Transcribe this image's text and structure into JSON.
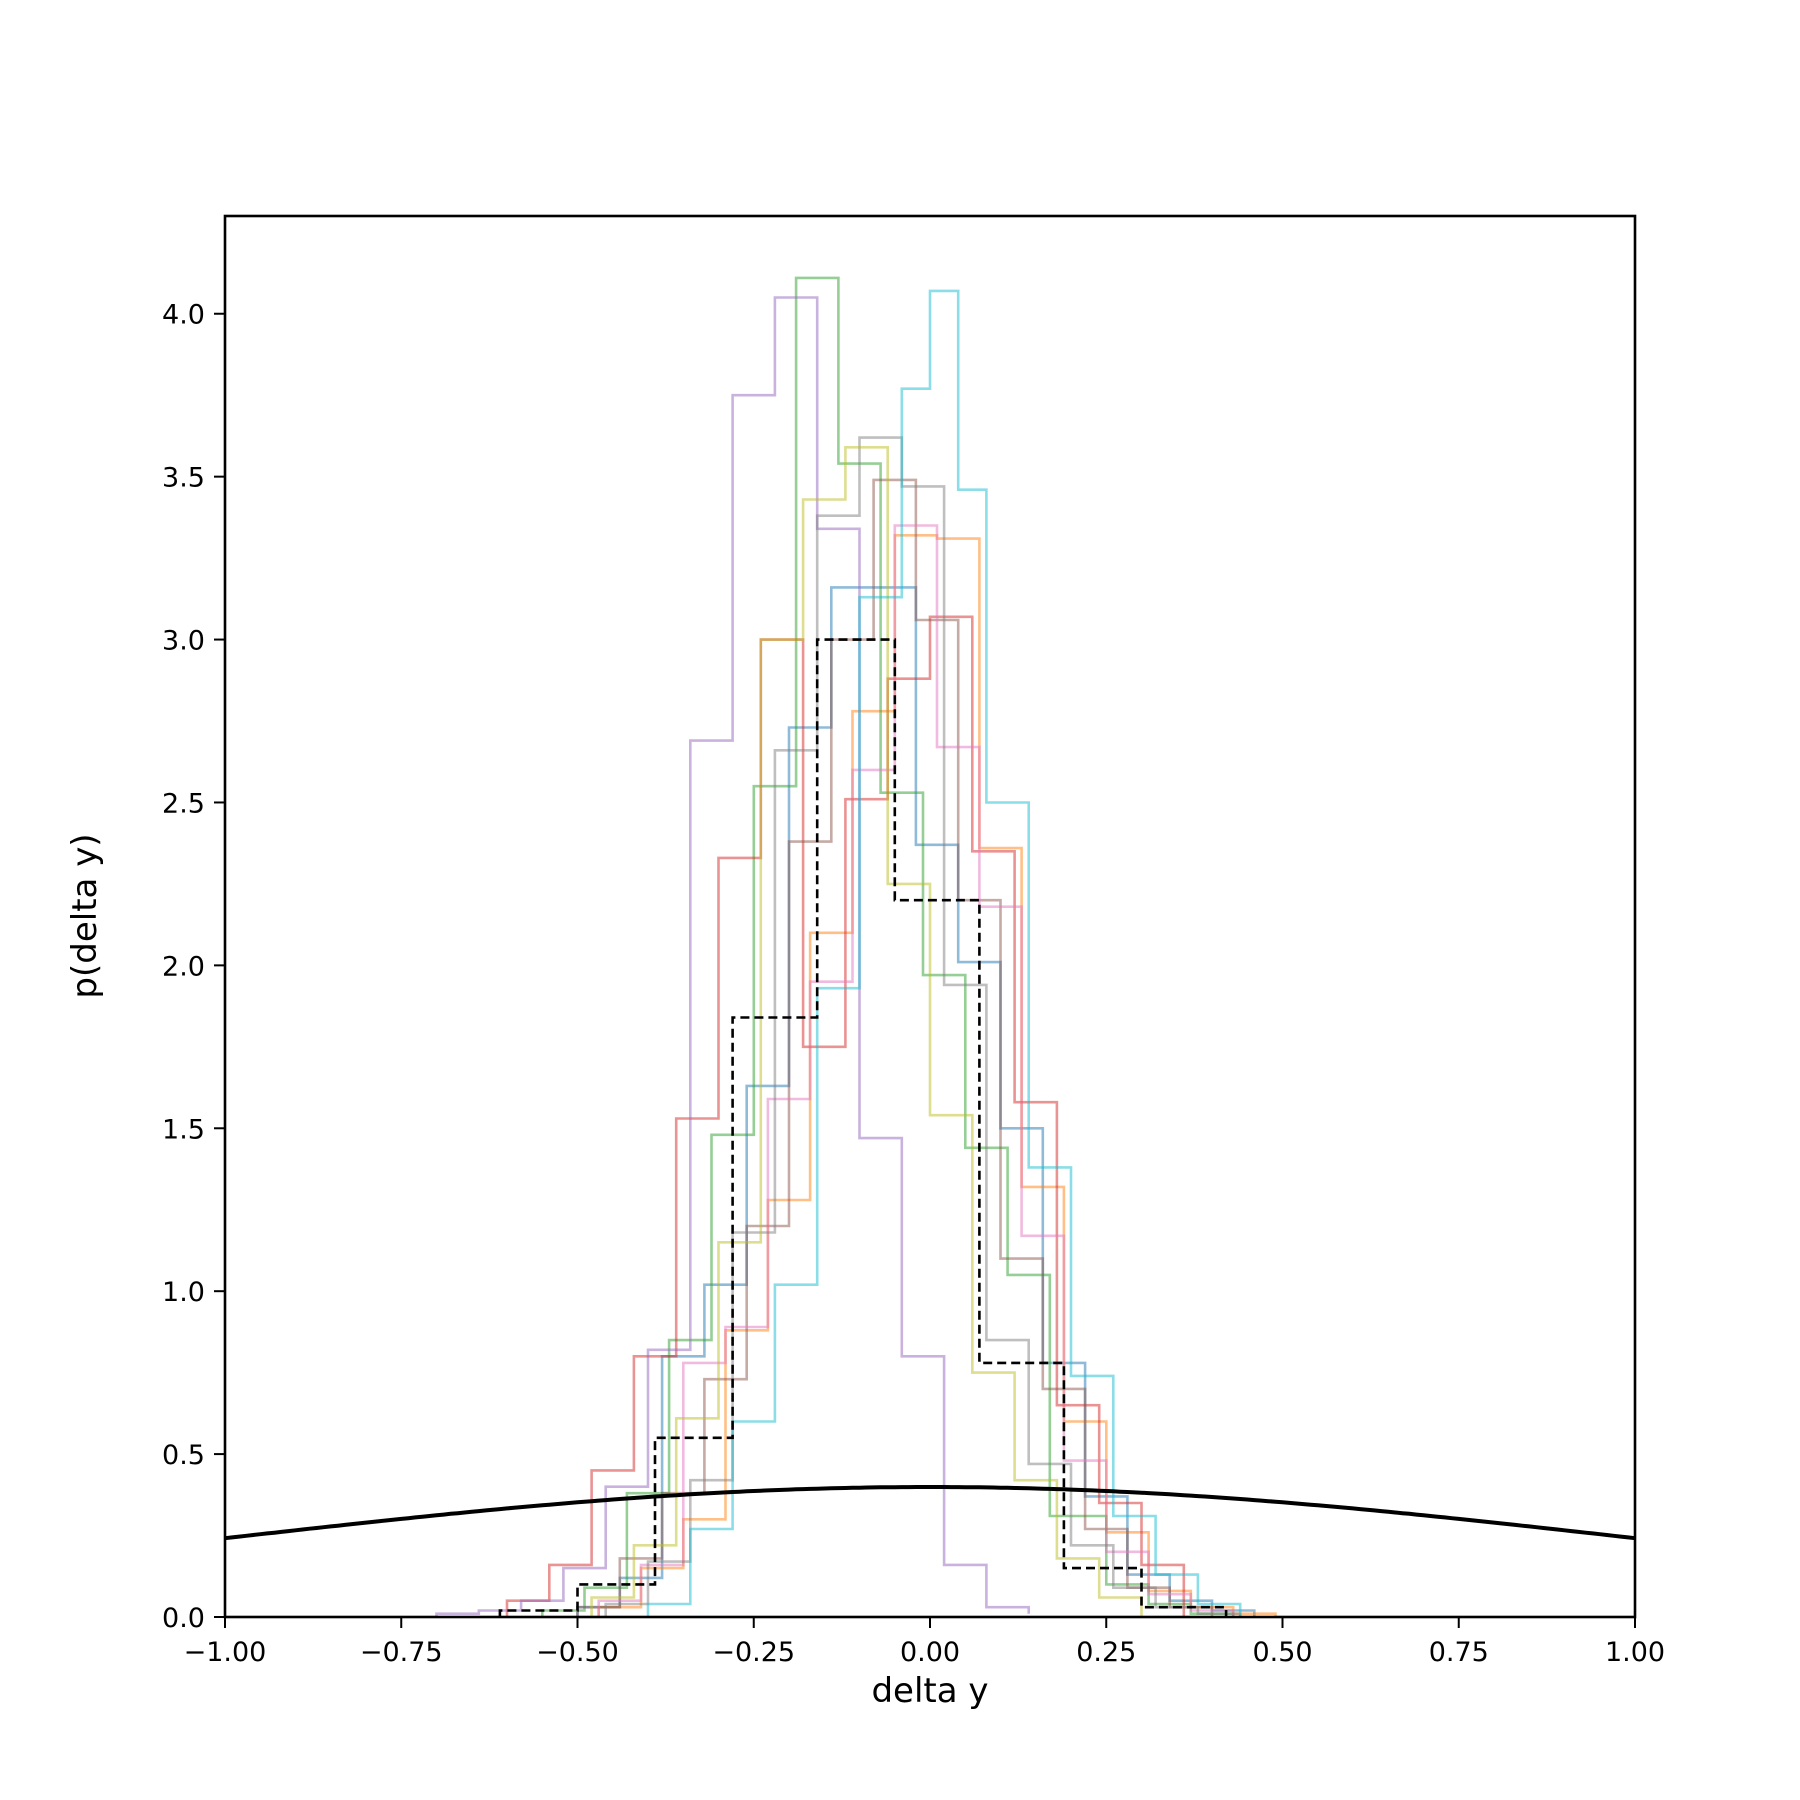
{
  "chart_data": {
    "type": "histogram",
    "xlabel": "delta y",
    "ylabel": "p(delta y)",
    "xlim": [
      -1.0,
      1.0
    ],
    "ylim": [
      0.0,
      4.3
    ],
    "x_ticks": [
      "−1.00",
      "−0.75",
      "−0.50",
      "−0.25",
      "0.00",
      "0.25",
      "0.50",
      "0.75",
      "1.00"
    ],
    "y_ticks": [
      "0.0",
      "0.5",
      "1.0",
      "1.5",
      "2.0",
      "2.5",
      "3.0",
      "3.5",
      "4.0"
    ],
    "x_tick_values": [
      -1.0,
      -0.75,
      -0.5,
      -0.25,
      0.0,
      0.25,
      0.5,
      0.75,
      1.0
    ],
    "y_tick_values": [
      0.0,
      0.5,
      1.0,
      1.5,
      2.0,
      2.5,
      3.0,
      3.5,
      4.0
    ],
    "grid": false,
    "series": [
      {
        "style": "step",
        "color": "#1f77b4",
        "alpha": 0.5,
        "edges": [
          -0.5,
          -0.44,
          -0.38,
          -0.32,
          -0.26,
          -0.2,
          -0.14,
          -0.08,
          -0.02,
          0.04,
          0.1,
          0.16,
          0.22,
          0.28,
          0.34,
          0.4,
          0.46
        ],
        "values": [
          0.03,
          0.12,
          0.8,
          1.02,
          1.63,
          2.73,
          3.16,
          3.16,
          2.37,
          2.01,
          1.5,
          0.78,
          0.37,
          0.13,
          0.05,
          0.02
        ]
      },
      {
        "style": "step",
        "color": "#ff7f0e",
        "alpha": 0.5,
        "edges": [
          -0.47,
          -0.41,
          -0.35,
          -0.29,
          -0.23,
          -0.17,
          -0.11,
          -0.05,
          0.01,
          0.07,
          0.13,
          0.19,
          0.25,
          0.31,
          0.37,
          0.43,
          0.49
        ],
        "values": [
          0.03,
          0.15,
          0.3,
          0.88,
          1.28,
          2.1,
          2.78,
          3.32,
          3.31,
          2.36,
          1.32,
          0.6,
          0.26,
          0.08,
          0.03,
          0.01
        ]
      },
      {
        "style": "step",
        "color": "#2ca02c",
        "alpha": 0.5,
        "edges": [
          -0.55,
          -0.49,
          -0.43,
          -0.37,
          -0.31,
          -0.25,
          -0.19,
          -0.13,
          -0.07,
          -0.01,
          0.05,
          0.11,
          0.17,
          0.25,
          0.31,
          0.37,
          0.43
        ],
        "values": [
          0.02,
          0.09,
          0.38,
          0.85,
          1.48,
          2.55,
          4.11,
          3.54,
          2.53,
          1.97,
          1.44,
          1.05,
          0.31,
          0.1,
          0.04,
          0.01
        ]
      },
      {
        "style": "step",
        "color": "#d62728",
        "alpha": 0.5,
        "edges": [
          -0.6,
          -0.54,
          -0.48,
          -0.42,
          -0.36,
          -0.3,
          -0.24,
          -0.18,
          -0.12,
          -0.06,
          0.0,
          0.06,
          0.12,
          0.18,
          0.24,
          0.3,
          0.36
        ],
        "values": [
          0.05,
          0.16,
          0.45,
          0.8,
          1.53,
          2.33,
          3.0,
          1.75,
          2.51,
          2.88,
          3.07,
          2.35,
          1.58,
          0.65,
          0.35,
          0.16
        ]
      },
      {
        "style": "step",
        "color": "#9467bd",
        "alpha": 0.5,
        "edges": [
          -0.7,
          -0.64,
          -0.58,
          -0.52,
          -0.46,
          -0.4,
          -0.34,
          -0.28,
          -0.22,
          -0.16,
          -0.1,
          -0.04,
          0.02,
          0.08,
          0.14
        ],
        "values": [
          0.01,
          0.02,
          0.05,
          0.15,
          0.4,
          0.82,
          2.69,
          3.75,
          4.05,
          3.34,
          1.47,
          0.8,
          0.16,
          0.03,
          0.01
        ]
      },
      {
        "style": "step",
        "color": "#8c564b",
        "alpha": 0.5,
        "edges": [
          -0.5,
          -0.44,
          -0.38,
          -0.32,
          -0.26,
          -0.2,
          -0.14,
          -0.08,
          -0.02,
          0.04,
          0.1,
          0.16,
          0.22,
          0.28,
          0.34,
          0.4
        ],
        "values": [
          0.03,
          0.18,
          0.38,
          0.73,
          1.2,
          2.38,
          3.0,
          3.49,
          3.06,
          2.2,
          1.1,
          0.7,
          0.27,
          0.09,
          0.03
        ]
      },
      {
        "style": "step",
        "color": "#e377c2",
        "alpha": 0.5,
        "edges": [
          -0.47,
          -0.41,
          -0.35,
          -0.29,
          -0.23,
          -0.17,
          -0.11,
          -0.05,
          0.01,
          0.07,
          0.13,
          0.19,
          0.25,
          0.31,
          0.37,
          0.43
        ],
        "values": [
          0.05,
          0.16,
          0.78,
          0.89,
          1.59,
          1.95,
          2.6,
          3.35,
          2.67,
          2.18,
          1.17,
          0.48,
          0.2,
          0.07,
          0.02
        ]
      },
      {
        "style": "step",
        "color": "#7f7f7f",
        "alpha": 0.5,
        "edges": [
          -0.46,
          -0.4,
          -0.34,
          -0.28,
          -0.22,
          -0.16,
          -0.1,
          -0.04,
          0.02,
          0.08,
          0.14,
          0.2,
          0.26,
          0.32,
          0.38,
          0.44
        ],
        "values": [
          0.04,
          0.17,
          0.42,
          1.18,
          2.66,
          3.38,
          3.62,
          3.47,
          1.94,
          0.85,
          0.47,
          0.22,
          0.09,
          0.03,
          0.01
        ]
      },
      {
        "style": "step",
        "color": "#bcbd22",
        "alpha": 0.5,
        "edges": [
          -0.48,
          -0.42,
          -0.36,
          -0.3,
          -0.24,
          -0.18,
          -0.12,
          -0.06,
          0.0,
          0.06,
          0.12,
          0.18,
          0.24,
          0.3
        ],
        "values": [
          0.06,
          0.22,
          0.61,
          1.15,
          3.0,
          3.43,
          3.59,
          2.25,
          1.54,
          0.75,
          0.42,
          0.18,
          0.06
        ]
      },
      {
        "style": "step",
        "color": "#17becf",
        "alpha": 0.5,
        "edges": [
          -0.4,
          -0.34,
          -0.28,
          -0.22,
          -0.16,
          -0.1,
          -0.04,
          0.0,
          0.04,
          0.08,
          0.14,
          0.2,
          0.26,
          0.32,
          0.38,
          0.44
        ],
        "values": [
          0.04,
          0.27,
          0.6,
          1.02,
          1.93,
          3.13,
          3.77,
          4.07,
          3.46,
          2.5,
          1.38,
          0.74,
          0.31,
          0.13,
          0.04
        ]
      },
      {
        "style": "step",
        "color": "#000000",
        "alpha": 1.0,
        "dashed": true,
        "edges": [
          -0.61,
          -0.5,
          -0.39,
          -0.28,
          -0.16,
          -0.05,
          0.07,
          0.19,
          0.3,
          0.42
        ],
        "values": [
          0.02,
          0.1,
          0.55,
          1.84,
          3.0,
          2.2,
          0.78,
          0.15,
          0.03
        ]
      },
      {
        "style": "curve",
        "color": "#000000",
        "kind": "normal_pdf",
        "mean": 0.0,
        "std": 1.0
      }
    ]
  }
}
